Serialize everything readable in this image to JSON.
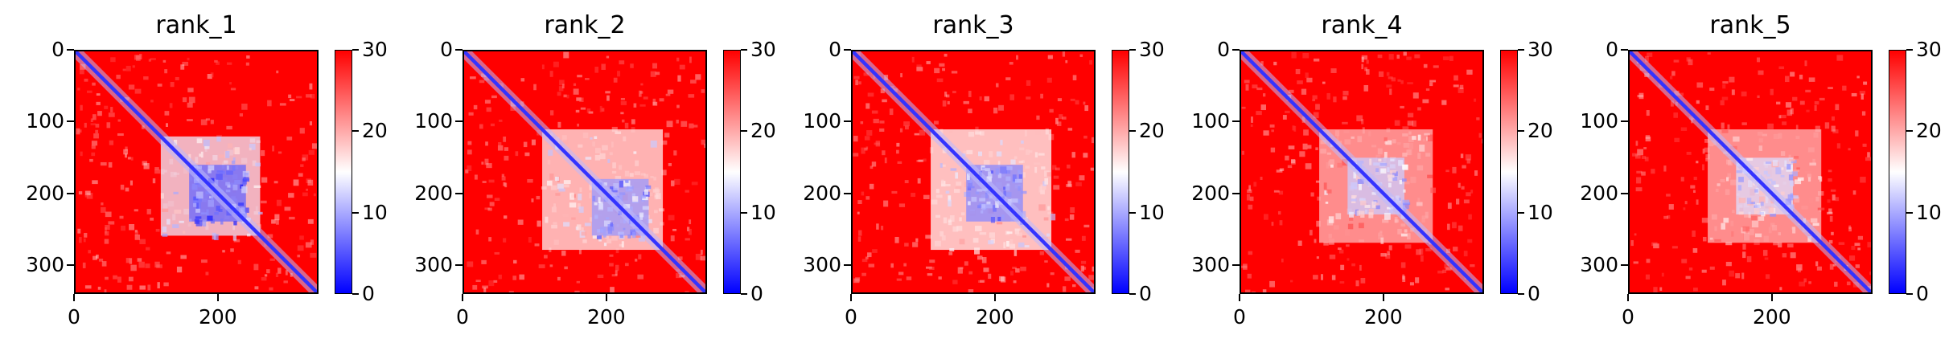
{
  "chart_data": [
    {
      "type": "heatmap",
      "title": "rank_1",
      "matrix_size": 340,
      "xlim": [
        0,
        340
      ],
      "ylim": [
        340,
        0
      ],
      "x_ticks": [
        0,
        200
      ],
      "y_ticks": [
        0,
        100,
        200,
        300
      ],
      "colorbar": {
        "min": 0,
        "max": 30,
        "ticks": [
          0,
          10,
          20,
          30
        ],
        "colormap": "bwr"
      },
      "diagonal_value": 3,
      "background_value": 30,
      "interaction_regions": [
        {
          "x": [
            120,
            260
          ],
          "y": [
            120,
            260
          ],
          "value": 14
        },
        {
          "x": [
            160,
            240
          ],
          "y": [
            160,
            240
          ],
          "value": 6
        }
      ]
    },
    {
      "type": "heatmap",
      "title": "rank_2",
      "matrix_size": 340,
      "xlim": [
        0,
        340
      ],
      "ylim": [
        340,
        0
      ],
      "x_ticks": [
        0,
        200
      ],
      "y_ticks": [
        0,
        100,
        200,
        300
      ],
      "colorbar": {
        "min": 0,
        "max": 30,
        "ticks": [
          0,
          10,
          20,
          30
        ],
        "colormap": "bwr"
      },
      "diagonal_value": 3,
      "background_value": 30,
      "interaction_regions": [
        {
          "x": [
            110,
            280
          ],
          "y": [
            110,
            280
          ],
          "value": 16
        },
        {
          "x": [
            180,
            260
          ],
          "y": [
            180,
            260
          ],
          "value": 9
        }
      ]
    },
    {
      "type": "heatmap",
      "title": "rank_3",
      "matrix_size": 340,
      "xlim": [
        0,
        340
      ],
      "ylim": [
        340,
        0
      ],
      "x_ticks": [
        0,
        200
      ],
      "y_ticks": [
        0,
        100,
        200,
        300
      ],
      "colorbar": {
        "min": 0,
        "max": 30,
        "ticks": [
          0,
          10,
          20,
          30
        ],
        "colormap": "bwr"
      },
      "diagonal_value": 3,
      "background_value": 30,
      "interaction_regions": [
        {
          "x": [
            110,
            280
          ],
          "y": [
            110,
            280
          ],
          "value": 15
        },
        {
          "x": [
            160,
            240
          ],
          "y": [
            160,
            240
          ],
          "value": 8
        }
      ]
    },
    {
      "type": "heatmap",
      "title": "rank_4",
      "matrix_size": 340,
      "xlim": [
        0,
        340
      ],
      "ylim": [
        340,
        0
      ],
      "x_ticks": [
        0,
        200
      ],
      "y_ticks": [
        0,
        100,
        200,
        300
      ],
      "colorbar": {
        "min": 0,
        "max": 30,
        "ticks": [
          0,
          10,
          20,
          30
        ],
        "colormap": "bwr"
      },
      "diagonal_value": 3,
      "background_value": 30,
      "interaction_regions": [
        {
          "x": [
            110,
            270
          ],
          "y": [
            110,
            270
          ],
          "value": 19
        },
        {
          "x": [
            150,
            230
          ],
          "y": [
            150,
            230
          ],
          "value": 12
        }
      ]
    },
    {
      "type": "heatmap",
      "title": "rank_5",
      "matrix_size": 340,
      "xlim": [
        0,
        340
      ],
      "ylim": [
        340,
        0
      ],
      "x_ticks": [
        0,
        200
      ],
      "y_ticks": [
        0,
        100,
        200,
        300
      ],
      "colorbar": {
        "min": 0,
        "max": 30,
        "ticks": [
          0,
          10,
          20,
          30
        ],
        "colormap": "bwr"
      },
      "diagonal_value": 3,
      "background_value": 30,
      "interaction_regions": [
        {
          "x": [
            110,
            270
          ],
          "y": [
            110,
            270
          ],
          "value": 19
        },
        {
          "x": [
            150,
            230
          ],
          "y": [
            150,
            230
          ],
          "value": 13
        }
      ]
    }
  ]
}
